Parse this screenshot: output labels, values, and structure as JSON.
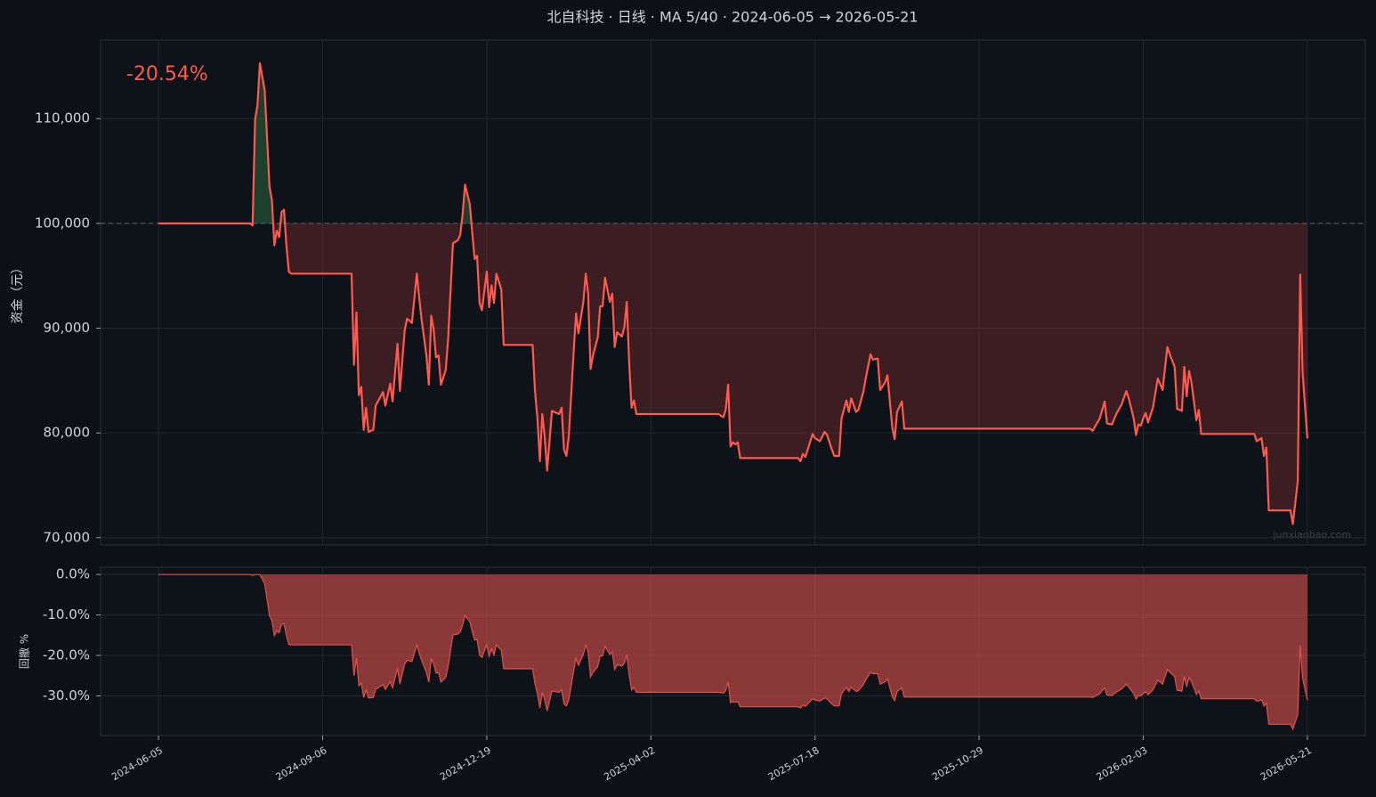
{
  "chart_data": [
    {
      "type": "line",
      "title": "北自科技 · 日线 · MA 5/40 · 2024-06-05 → 2026-05-21",
      "annotation": "-20.54%",
      "watermark": "junxianbao.com",
      "y_label": "资金（元）",
      "x": [
        0,
        38,
        39,
        40,
        41,
        42,
        44,
        46,
        47,
        48,
        49,
        50,
        51,
        52,
        53,
        54,
        55,
        80,
        81,
        82,
        83,
        84,
        85,
        86,
        87,
        89,
        90,
        93,
        94,
        96,
        97,
        99,
        100,
        102,
        103,
        105,
        107,
        108,
        109,
        111,
        112,
        113,
        114,
        115,
        116,
        117,
        119,
        120,
        122,
        124,
        125,
        126,
        127,
        129,
        130,
        131,
        132,
        133,
        134,
        136,
        137,
        138,
        139,
        140,
        142,
        143,
        155,
        156,
        157,
        158,
        159,
        160,
        161,
        162,
        163,
        166,
        167,
        168,
        169,
        170,
        172,
        173,
        174,
        176,
        177,
        178,
        179,
        180,
        182,
        183,
        184,
        185,
        187,
        188,
        189,
        190,
        192,
        193,
        194,
        195,
        196,
        197,
        198,
        232,
        234,
        235,
        236,
        237,
        238,
        239,
        240,
        241,
        265,
        266,
        267,
        268,
        271,
        272,
        274,
        276,
        277,
        279,
        280,
        282,
        283,
        285,
        286,
        287,
        289,
        290,
        292,
        293,
        295,
        296,
        298,
        299,
        301,
        302,
        304,
        305,
        306,
        308,
        309,
        386,
        387,
        388,
        390,
        392,
        393,
        395,
        397,
        399,
        401,
        402,
        404,
        405,
        406,
        407,
        408,
        409,
        410,
        412,
        414,
        416,
        418,
        419,
        421,
        422,
        424,
        425,
        426,
        427,
        428,
        430,
        431,
        432,
        454,
        455,
        457,
        458,
        459,
        460,
        469,
        470,
        472,
        473,
        474,
        476
      ],
      "series": [
        {
          "color": "#ff5a4f",
          "values": [
            100000,
            100000,
            99800,
            109900,
            111300,
            115300,
            112700,
            103500,
            102200,
            97900,
            99300,
            98700,
            101100,
            101300,
            97900,
            95400,
            95200,
            95200,
            86500,
            91500,
            83600,
            84400,
            80300,
            82400,
            80100,
            80300,
            82600,
            83900,
            82600,
            84700,
            83000,
            88500,
            84000,
            89800,
            90900,
            90500,
            95200,
            92900,
            90800,
            87400,
            84600,
            91200,
            89900,
            87200,
            87400,
            84600,
            86000,
            89000,
            98100,
            98400,
            98900,
            100900,
            103700,
            101800,
            99100,
            96600,
            96900,
            92400,
            91700,
            95400,
            92000,
            94100,
            92400,
            95200,
            93700,
            88400,
            88400,
            84000,
            81400,
            77300,
            81800,
            79600,
            76400,
            79200,
            82100,
            81800,
            82400,
            78400,
            77800,
            79700,
            87700,
            91400,
            89500,
            92500,
            95200,
            93300,
            86100,
            87400,
            89100,
            92100,
            92100,
            94800,
            92500,
            93300,
            88200,
            89600,
            89200,
            90100,
            92500,
            86700,
            82400,
            83100,
            81800,
            81800,
            81500,
            82200,
            84600,
            78700,
            79100,
            78900,
            79100,
            77600,
            77600,
            77300,
            78000,
            77700,
            79900,
            79500,
            79200,
            80100,
            79800,
            78400,
            77800,
            77800,
            81400,
            83100,
            82000,
            83300,
            82000,
            82200,
            83900,
            85200,
            87500,
            87000,
            87100,
            84100,
            84800,
            85500,
            80500,
            79400,
            82000,
            83000,
            80400,
            80400,
            80200,
            80600,
            81400,
            83000,
            80900,
            80800,
            81900,
            82700,
            84000,
            83300,
            81400,
            79800,
            80800,
            80700,
            81400,
            81900,
            81000,
            82400,
            85200,
            84100,
            88200,
            87500,
            86300,
            82300,
            82100,
            86300,
            83500,
            85900,
            84800,
            81200,
            82200,
            79900,
            79900,
            79200,
            79500,
            77800,
            78600,
            72600,
            72600,
            71300,
            75400,
            95100,
            85800,
            79460
          ]
        }
      ],
      "baseline": 100000,
      "fill_above": "#2f7a45",
      "fill_below": "#b0393b",
      "xlim": [
        -24,
        500
      ],
      "ylim": [
        69300,
        117500
      ],
      "yticks": [
        {
          "value": 70000,
          "label": "70,000"
        },
        {
          "value": 80000,
          "label": "80,000"
        },
        {
          "value": 90000,
          "label": "90,000"
        },
        {
          "value": 100000,
          "label": "100,000"
        },
        {
          "value": 110000,
          "label": "110,000"
        }
      ],
      "grid": true
    },
    {
      "type": "area",
      "y_label": "回撤 %",
      "x": [
        0,
        38,
        39,
        40,
        41,
        42,
        44,
        46,
        47,
        48,
        49,
        50,
        51,
        52,
        53,
        54,
        55,
        80,
        81,
        82,
        83,
        84,
        85,
        86,
        87,
        89,
        90,
        93,
        94,
        96,
        97,
        99,
        100,
        102,
        103,
        105,
        107,
        108,
        109,
        111,
        112,
        113,
        114,
        115,
        116,
        117,
        119,
        120,
        122,
        124,
        125,
        126,
        127,
        129,
        130,
        131,
        132,
        133,
        134,
        136,
        137,
        138,
        139,
        140,
        142,
        143,
        155,
        156,
        157,
        158,
        159,
        160,
        161,
        162,
        163,
        166,
        167,
        168,
        169,
        170,
        172,
        173,
        174,
        176,
        177,
        178,
        179,
        180,
        182,
        183,
        184,
        185,
        187,
        188,
        189,
        190,
        192,
        193,
        194,
        195,
        196,
        197,
        198,
        232,
        234,
        235,
        236,
        237,
        238,
        239,
        240,
        241,
        265,
        266,
        267,
        268,
        271,
        272,
        274,
        276,
        277,
        279,
        280,
        282,
        283,
        285,
        286,
        287,
        289,
        290,
        292,
        293,
        295,
        296,
        298,
        299,
        301,
        302,
        304,
        305,
        306,
        308,
        309,
        386,
        387,
        388,
        390,
        392,
        393,
        395,
        397,
        399,
        401,
        402,
        404,
        405,
        406,
        407,
        408,
        409,
        410,
        412,
        414,
        416,
        418,
        419,
        421,
        422,
        424,
        425,
        426,
        427,
        428,
        430,
        431,
        432,
        454,
        455,
        457,
        458,
        459,
        460,
        469,
        470,
        472,
        473,
        474,
        476
      ],
      "series": [
        {
          "color": "#e0524c",
          "values": [
            0,
            0,
            -0.2,
            0,
            0,
            0,
            -2.3,
            -10.2,
            -11.4,
            -15.1,
            -13.9,
            -14.4,
            -12.3,
            -12.1,
            -15.1,
            -17.3,
            -17.4,
            -17.4,
            -25.0,
            -20.6,
            -27.5,
            -26.8,
            -30.4,
            -28.5,
            -30.5,
            -30.4,
            -28.4,
            -27.2,
            -28.4,
            -26.5,
            -28.0,
            -23.2,
            -27.1,
            -22.1,
            -21.2,
            -21.5,
            -17.4,
            -19.4,
            -21.2,
            -24.2,
            -26.6,
            -20.9,
            -22.0,
            -24.4,
            -24.2,
            -26.6,
            -25.4,
            -22.8,
            -14.9,
            -14.7,
            -14.2,
            -12.5,
            -10.1,
            -11.7,
            -14.1,
            -16.2,
            -16.0,
            -19.9,
            -20.5,
            -17.3,
            -20.2,
            -18.4,
            -19.9,
            -17.4,
            -18.7,
            -23.3,
            -23.3,
            -27.1,
            -29.4,
            -33.0,
            -29.1,
            -31.0,
            -33.7,
            -31.3,
            -28.8,
            -29.1,
            -28.5,
            -32.0,
            -32.5,
            -30.9,
            -23.9,
            -20.7,
            -22.4,
            -19.8,
            -17.4,
            -19.1,
            -25.3,
            -24.2,
            -22.7,
            -20.1,
            -20.1,
            -17.8,
            -19.8,
            -19.1,
            -23.5,
            -22.3,
            -22.6,
            -21.9,
            -19.8,
            -24.8,
            -28.5,
            -27.9,
            -29.1,
            -29.1,
            -29.3,
            -28.7,
            -26.6,
            -31.7,
            -31.4,
            -31.6,
            -31.4,
            -32.7,
            -32.7,
            -33.0,
            -32.3,
            -32.6,
            -30.7,
            -31.0,
            -31.3,
            -30.5,
            -30.8,
            -32.0,
            -32.5,
            -32.5,
            -29.4,
            -27.9,
            -28.9,
            -27.8,
            -28.9,
            -28.7,
            -27.2,
            -26.1,
            -24.1,
            -24.5,
            -24.5,
            -27.1,
            -26.5,
            -25.8,
            -30.2,
            -31.1,
            -28.9,
            -28.0,
            -30.3,
            -30.3,
            -30.4,
            -30.1,
            -29.4,
            -28.0,
            -29.8,
            -29.9,
            -29.0,
            -28.3,
            -27.1,
            -27.8,
            -29.4,
            -30.8,
            -29.9,
            -30.0,
            -29.4,
            -29.0,
            -29.7,
            -28.5,
            -26.1,
            -27.1,
            -23.5,
            -24.1,
            -25.2,
            -28.6,
            -28.8,
            -25.2,
            -27.6,
            -25.5,
            -26.5,
            -29.6,
            -28.7,
            -30.7,
            -30.7,
            -31.3,
            -31.0,
            -32.5,
            -31.8,
            -37.0,
            -37.0,
            -38.2,
            -34.6,
            -17.5,
            -25.6,
            -31.1
          ]
        }
      ],
      "xlim": [
        -24,
        500
      ],
      "ylim": [
        -39.8,
        1.8
      ],
      "yticks": [
        {
          "value": -30,
          "label": "-30.0%"
        },
        {
          "value": -20,
          "label": "-20.0%"
        },
        {
          "value": -10,
          "label": "-10.0%"
        },
        {
          "value": 0,
          "label": "0.0%"
        }
      ],
      "xticks": [
        {
          "value": 0,
          "label": "2024-06-05"
        },
        {
          "value": 68,
          "label": "2024-09-06"
        },
        {
          "value": 136,
          "label": "2024-12-19"
        },
        {
          "value": 204,
          "label": "2025-04-02"
        },
        {
          "value": 272,
          "label": "2025-07-18"
        },
        {
          "value": 340,
          "label": "2025-10-29"
        },
        {
          "value": 408,
          "label": "2026-02-03"
        },
        {
          "value": 476,
          "label": "2026-05-21"
        }
      ],
      "grid": true
    }
  ]
}
